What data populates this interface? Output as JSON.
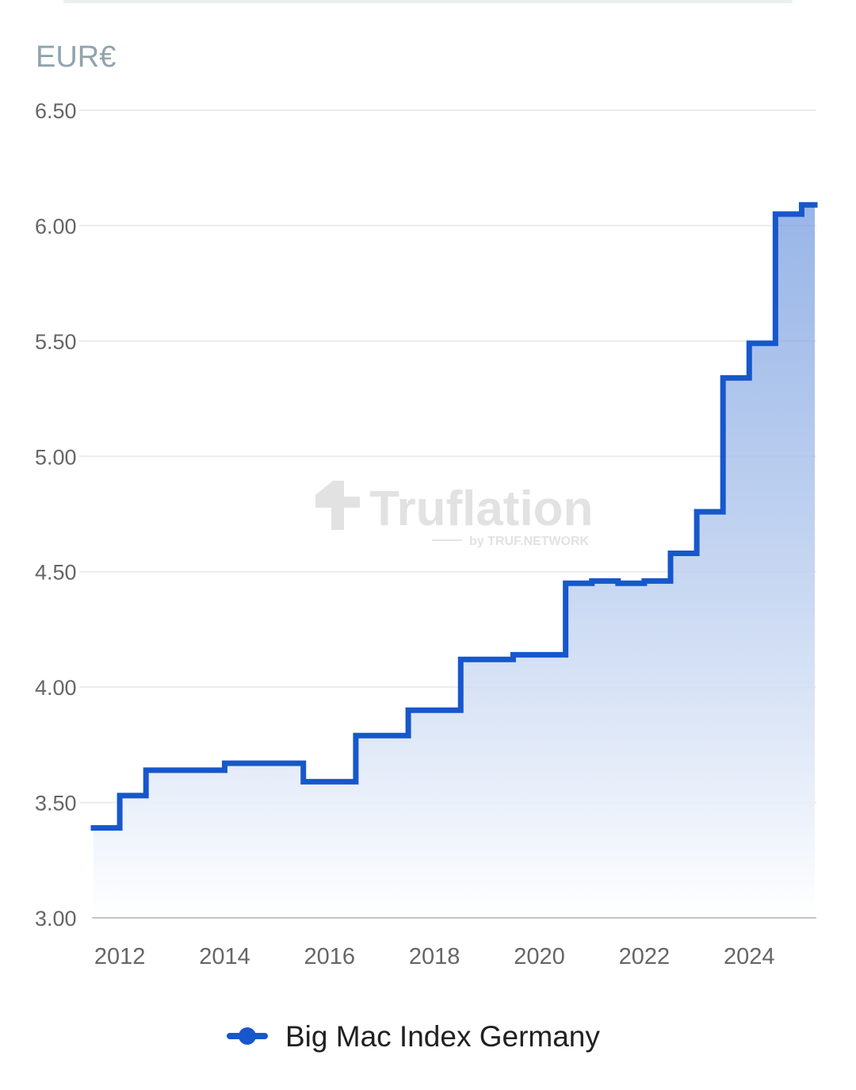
{
  "unit_label": "EUR€",
  "watermark": {
    "brand": "Truflation",
    "sub": "by TRUF.NETWORK"
  },
  "colors": {
    "line": "#1757cc",
    "area_top": "#6e97dd",
    "area_bottom": "#ffffff"
  },
  "chart_data": {
    "type": "area",
    "step": true,
    "title": "",
    "xlabel": "",
    "ylabel": "EUR€",
    "ylim": [
      3.0,
      6.5
    ],
    "xlim": [
      2011.5,
      2025.25
    ],
    "y_ticks": [
      "3.00",
      "3.50",
      "4.00",
      "4.50",
      "5.00",
      "5.50",
      "6.00",
      "6.50"
    ],
    "x_ticks": [
      "2012",
      "2014",
      "2016",
      "2018",
      "2020",
      "2022",
      "2024"
    ],
    "grid": true,
    "legend": "bottom-center",
    "series": [
      {
        "name": "Big Mac Index Germany",
        "points": [
          {
            "x": 2011.5,
            "y": 3.39
          },
          {
            "x": 2012.0,
            "y": 3.53
          },
          {
            "x": 2012.5,
            "y": 3.64
          },
          {
            "x": 2014.0,
            "y": 3.67
          },
          {
            "x": 2015.5,
            "y": 3.59
          },
          {
            "x": 2016.5,
            "y": 3.79
          },
          {
            "x": 2017.5,
            "y": 3.9
          },
          {
            "x": 2018.5,
            "y": 4.12
          },
          {
            "x": 2019.5,
            "y": 4.14
          },
          {
            "x": 2020.5,
            "y": 4.45
          },
          {
            "x": 2021.0,
            "y": 4.46
          },
          {
            "x": 2021.5,
            "y": 4.45
          },
          {
            "x": 2022.0,
            "y": 4.46
          },
          {
            "x": 2022.5,
            "y": 4.58
          },
          {
            "x": 2023.0,
            "y": 4.76
          },
          {
            "x": 2023.5,
            "y": 5.34
          },
          {
            "x": 2024.0,
            "y": 5.49
          },
          {
            "x": 2024.5,
            "y": 6.05
          },
          {
            "x": 2025.0,
            "y": 6.09
          }
        ]
      }
    ]
  }
}
